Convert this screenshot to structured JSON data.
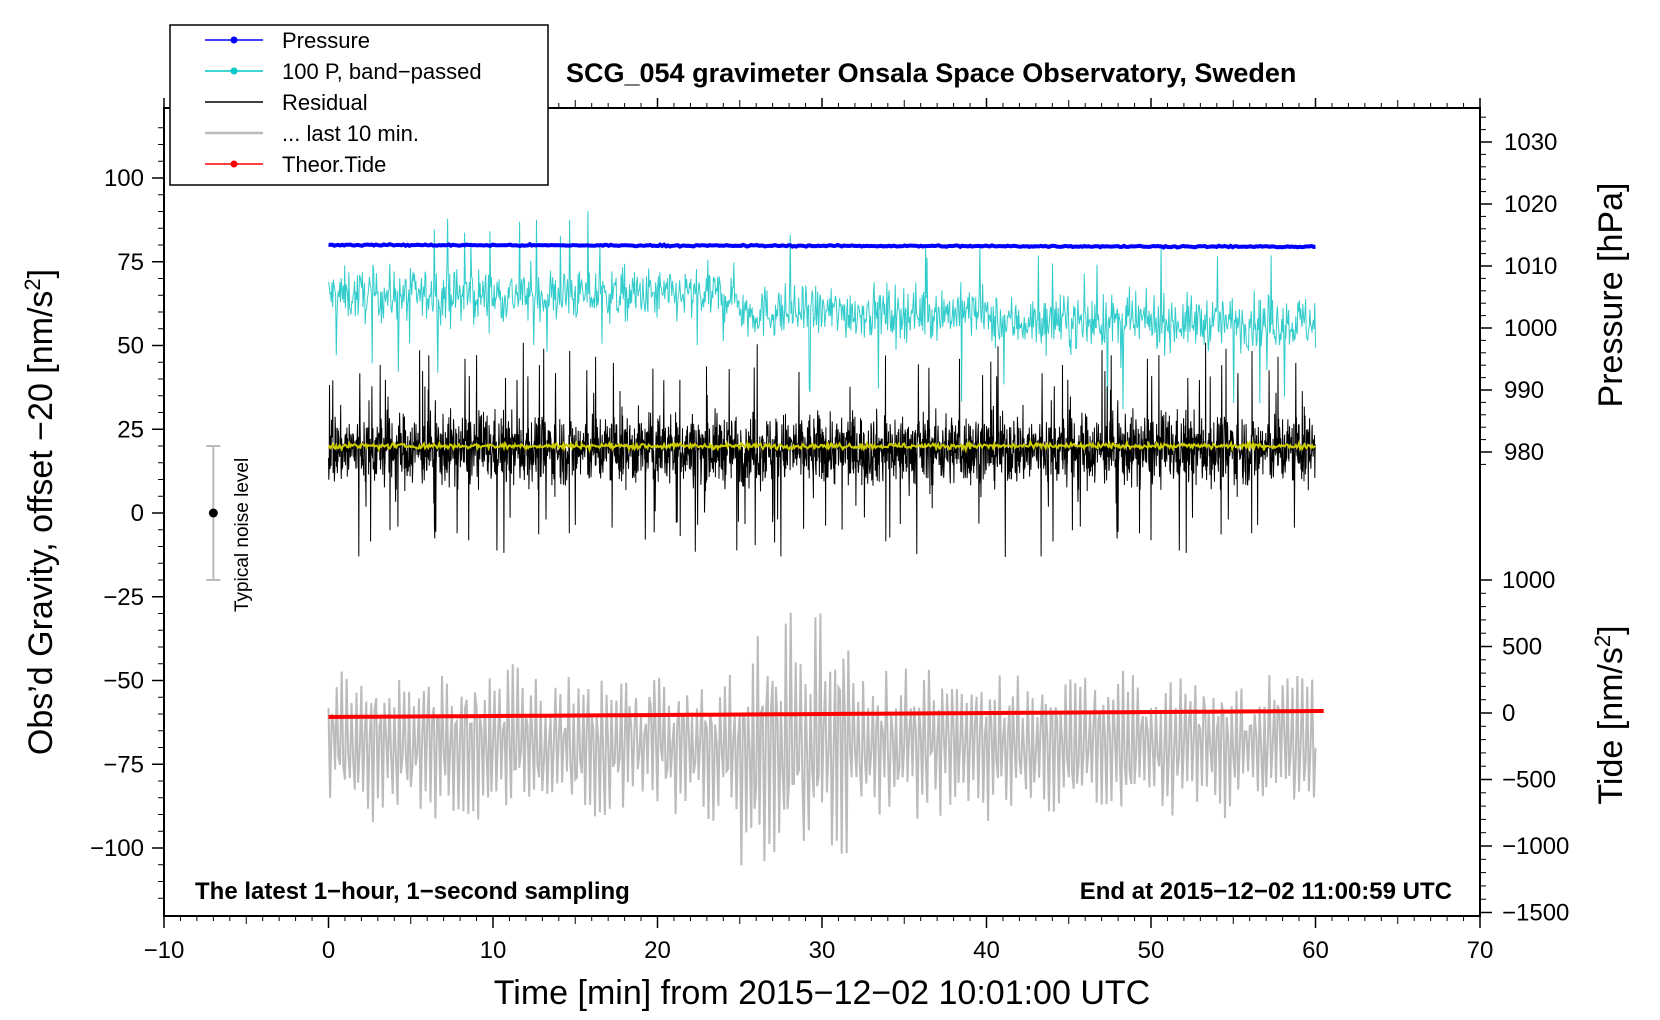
{
  "chart_data": {
    "type": "line",
    "title": "SCG_054 gravimeter Onsala Space Observatory, Sweden",
    "xlabel": "Time [min] from 2015−12−02 10:01:00 UTC",
    "ylabel_left": "Obs’d Gravity, offset −20 [nm/s²]",
    "ylabel_right_top": "Pressure [hPa]",
    "ylabel_right_bottom": "Tide [nm/s²]",
    "xlim": [
      -10,
      70
    ],
    "ylim_left": [
      -120,
      120
    ],
    "ylim_pressure": [
      970,
      1035
    ],
    "ylim_tide": [
      -1500,
      1000
    ],
    "x_ticks": [
      "−10",
      "0",
      "10",
      "20",
      "30",
      "40",
      "50",
      "60",
      "70"
    ],
    "x_tick_values": [
      -10,
      0,
      10,
      20,
      30,
      40,
      50,
      60,
      70
    ],
    "left_ticks": [
      "100",
      "75",
      "50",
      "25",
      "0",
      "−25",
      "−50",
      "−75",
      "−100"
    ],
    "left_tick_values": [
      100,
      75,
      50,
      25,
      0,
      -25,
      -50,
      -75,
      -100
    ],
    "pressure_ticks": [
      "1030",
      "1020",
      "1010",
      "1000",
      "990",
      "980"
    ],
    "pressure_tick_values": [
      1030,
      1020,
      1010,
      1000,
      990,
      980
    ],
    "tide_ticks": [
      "1000",
      "500",
      "0",
      "−500",
      "−1000",
      "−1500"
    ],
    "tide_tick_values": [
      1000,
      500,
      0,
      -500,
      -1000,
      -1500
    ],
    "annotations": {
      "bottom_left": "The latest 1−hour, 1−second sampling",
      "bottom_right": "End at 2015−12−02 11:00:59 UTC",
      "noise_label": "Typical noise level"
    },
    "noise_bar": {
      "x": -7,
      "center": 0,
      "low": -20,
      "high": 20
    },
    "legend": {
      "position": "top-left",
      "entries": [
        {
          "label": "Pressure",
          "color": "#0000ff",
          "marker": true
        },
        {
          "label": "100 P, band−passed",
          "color": "#00c8c8",
          "marker": true
        },
        {
          "label": "Residual",
          "color": "#000000",
          "marker": false
        },
        {
          "label": "... last 10 min.",
          "color": "#bbbbbb",
          "marker": false
        },
        {
          "label": "Theor.Tide",
          "color": "#ff0000",
          "marker": true
        }
      ]
    },
    "series": [
      {
        "name": "Pressure",
        "axis": "pressure",
        "color": "#0000ff",
        "x_range": [
          0,
          60
        ],
        "level_start": 1013.4,
        "level_end": 1013.1,
        "noise": 0.3
      },
      {
        "name": "100 P, band−passed",
        "axis": "left",
        "color": "#33cccc",
        "x_range": [
          0,
          60
        ],
        "mean": 60,
        "amplitude": 8
      },
      {
        "name": "Residual",
        "axis": "left",
        "color": "#000000",
        "x_range": [
          0,
          60
        ],
        "mean": 19,
        "amplitude": 9
      },
      {
        "name": "Residual smoothed",
        "axis": "left",
        "color": "#cccc00",
        "x_range": [
          0,
          60
        ],
        "mean": 20,
        "amplitude": 0.6
      },
      {
        "name": "... last 10 min.",
        "axis": "left",
        "color": "#bbbbbb",
        "x_range": [
          0,
          60
        ],
        "mean": -69,
        "amplitude": 12
      },
      {
        "name": "Theor.Tide",
        "axis": "tide",
        "color": "#ff0000",
        "x_range": [
          0,
          60.5
        ],
        "start": -30,
        "end": 15
      }
    ]
  }
}
